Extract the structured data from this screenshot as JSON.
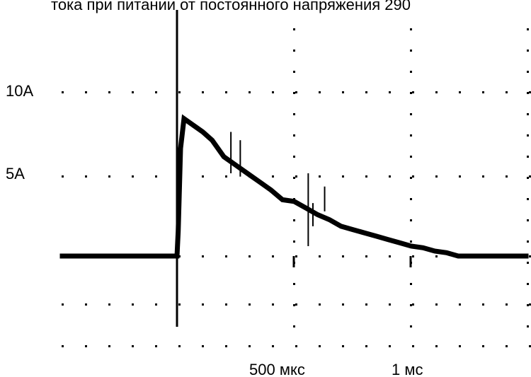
{
  "chart_data": {
    "type": "line",
    "title": "тока при питании от постоянного напряжения 290",
    "xlabel": "",
    "ylabel": "",
    "x_unit": "мкс",
    "y_unit": "A",
    "xlim": [
      -500,
      1500
    ],
    "ylim": [
      -9,
      15
    ],
    "y_ticks": [
      {
        "value": 10,
        "label": "10A"
      },
      {
        "value": 5,
        "label": "5A"
      }
    ],
    "x_ticks": [
      {
        "value": 500,
        "label": "500 мкс"
      },
      {
        "value": 1000,
        "label": "1 мс"
      }
    ],
    "grid": "dotted",
    "series": [
      {
        "color": "#000000",
        "x": [
          -500,
          -10,
          0,
          5,
          15,
          30,
          50,
          80,
          110,
          150,
          200,
          250,
          300,
          350,
          400,
          450,
          500,
          550,
          600,
          650,
          700,
          750,
          800,
          850,
          900,
          950,
          1000,
          1050,
          1100,
          1150,
          1200,
          1250,
          1300,
          1350,
          1400,
          1450,
          1500
        ],
        "y": [
          0,
          0,
          0,
          1.5,
          6.5,
          8.3,
          8.1,
          7.8,
          7.5,
          7.0,
          6.0,
          5.5,
          5.0,
          4.5,
          4.0,
          3.4,
          3.3,
          2.9,
          2.5,
          2.2,
          1.8,
          1.6,
          1.4,
          1.2,
          1.0,
          0.8,
          0.6,
          0.5,
          0.3,
          0.2,
          0.0,
          0.0,
          0.0,
          0.0,
          0.0,
          0.0,
          0.0
        ]
      }
    ],
    "spikes": [
      {
        "x": 230,
        "top": 7.5,
        "bottom": 5.0
      },
      {
        "x": 270,
        "top": 7.0,
        "bottom": 4.8
      },
      {
        "x": 560,
        "top": 5.0,
        "bottom": 0.6
      },
      {
        "x": 580,
        "top": 3.2,
        "bottom": 1.8
      },
      {
        "x": 630,
        "top": 4.2,
        "bottom": 2.7
      }
    ]
  }
}
